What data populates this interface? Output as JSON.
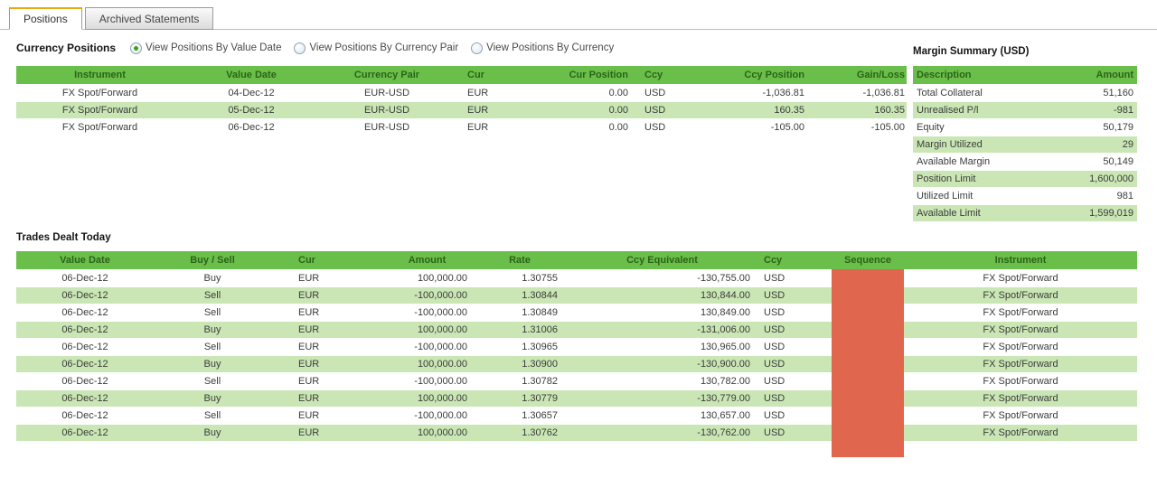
{
  "tabs": [
    {
      "label": "Positions",
      "active": true
    },
    {
      "label": "Archived Statements",
      "active": false
    }
  ],
  "currency_positions": {
    "title": "Currency Positions",
    "radios": [
      {
        "label": "View Positions By Value Date",
        "selected": true
      },
      {
        "label": "View Positions By Currency Pair",
        "selected": false
      },
      {
        "label": "View Positions By Currency",
        "selected": false
      }
    ],
    "columns": [
      "Instrument",
      "Value Date",
      "Currency Pair",
      "Cur",
      "Cur Position",
      "Ccy",
      "Ccy Position",
      "Gain/Loss"
    ],
    "rows": [
      [
        "FX Spot/Forward",
        "04-Dec-12",
        "EUR-USD",
        "EUR",
        "0.00",
        "USD",
        "-1,036.81",
        "-1,036.81"
      ],
      [
        "FX Spot/Forward",
        "05-Dec-12",
        "EUR-USD",
        "EUR",
        "0.00",
        "USD",
        "160.35",
        "160.35"
      ],
      [
        "FX Spot/Forward",
        "06-Dec-12",
        "EUR-USD",
        "EUR",
        "0.00",
        "USD",
        "-105.00",
        "-105.00"
      ]
    ]
  },
  "margin_summary": {
    "title": "Margin Summary (USD)",
    "columns": [
      "Description",
      "Amount"
    ],
    "rows": [
      [
        "Total Collateral",
        "51,160"
      ],
      [
        "Unrealised P/l",
        "-981"
      ],
      [
        "Equity",
        "50,179"
      ],
      [
        "Margin Utilized",
        "29"
      ],
      [
        "Available Margin",
        "50,149"
      ],
      [
        "Position Limit",
        "1,600,000"
      ],
      [
        "Utilized Limit",
        "981"
      ],
      [
        "Available Limit",
        "1,599,019"
      ]
    ]
  },
  "trades": {
    "title": "Trades Dealt Today",
    "columns": [
      "Value Date",
      "Buy / Sell",
      "Cur",
      "Amount",
      "Rate",
      "Ccy Equivalent",
      "Ccy",
      "Sequence",
      "Instrument"
    ],
    "sequence_redacted": true,
    "rows": [
      [
        "06-Dec-12",
        "Buy",
        "EUR",
        "100,000.00",
        "1.30755",
        "-130,755.00",
        "USD",
        "",
        "FX Spot/Forward"
      ],
      [
        "06-Dec-12",
        "Sell",
        "EUR",
        "-100,000.00",
        "1.30844",
        "130,844.00",
        "USD",
        "",
        "FX Spot/Forward"
      ],
      [
        "06-Dec-12",
        "Sell",
        "EUR",
        "-100,000.00",
        "1.30849",
        "130,849.00",
        "USD",
        "",
        "FX Spot/Forward"
      ],
      [
        "06-Dec-12",
        "Buy",
        "EUR",
        "100,000.00",
        "1.31006",
        "-131,006.00",
        "USD",
        "",
        "FX Spot/Forward"
      ],
      [
        "06-Dec-12",
        "Sell",
        "EUR",
        "-100,000.00",
        "1.30965",
        "130,965.00",
        "USD",
        "",
        "FX Spot/Forward"
      ],
      [
        "06-Dec-12",
        "Buy",
        "EUR",
        "100,000.00",
        "1.30900",
        "-130,900.00",
        "USD",
        "",
        "FX Spot/Forward"
      ],
      [
        "06-Dec-12",
        "Sell",
        "EUR",
        "-100,000.00",
        "1.30782",
        "130,782.00",
        "USD",
        "",
        "FX Spot/Forward"
      ],
      [
        "06-Dec-12",
        "Buy",
        "EUR",
        "100,000.00",
        "1.30779",
        "-130,779.00",
        "USD",
        "",
        "FX Spot/Forward"
      ],
      [
        "06-Dec-12",
        "Sell",
        "EUR",
        "-100,000.00",
        "1.30657",
        "130,657.00",
        "USD",
        "",
        "FX Spot/Forward"
      ],
      [
        "06-Dec-12",
        "Buy",
        "EUR",
        "100,000.00",
        "1.30762",
        "-130,762.00",
        "USD",
        "",
        "FX Spot/Forward"
      ]
    ]
  },
  "colors": {
    "header_green": "#6abf4b",
    "row_alt_green": "#c9e6b4",
    "header_text": "#2c6316",
    "redaction_red": "#e0664d",
    "tab_accent_orange": "#eda713"
  }
}
